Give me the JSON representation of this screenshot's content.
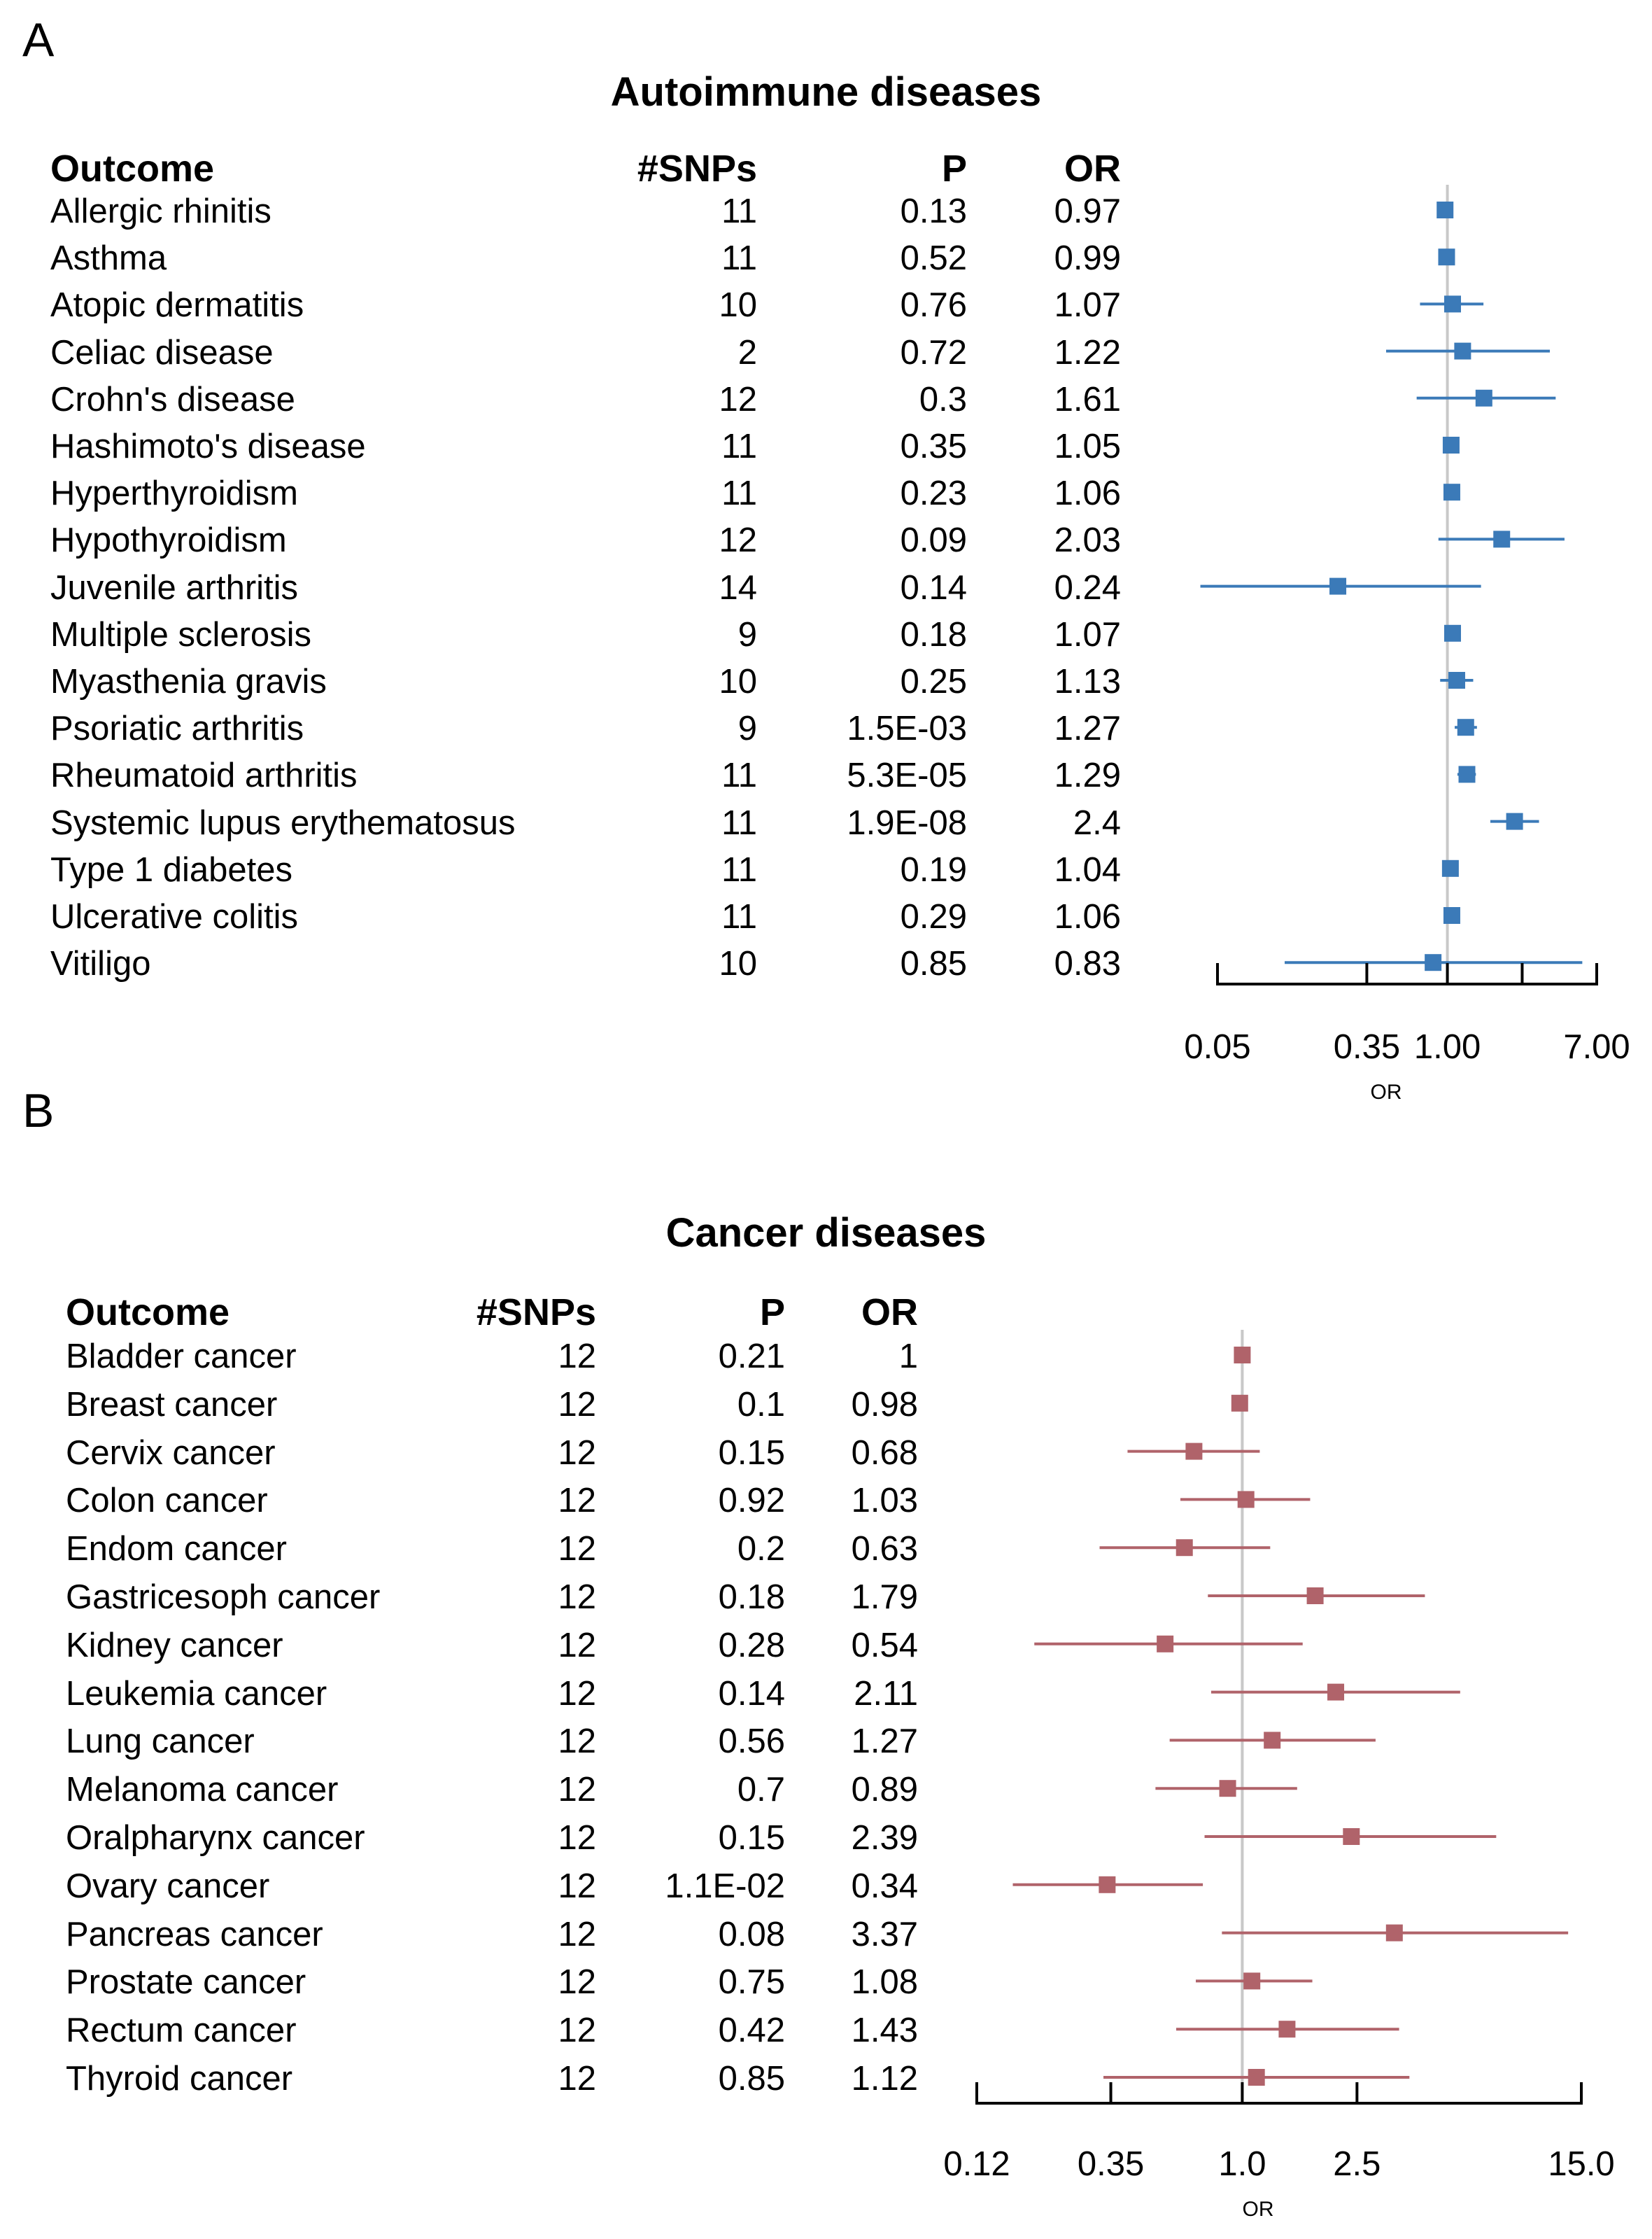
{
  "chart_data": [
    {
      "type": "forest",
      "panel": "A",
      "title": "Autoimmune diseases",
      "headers": {
        "outcome": "Outcome",
        "snps": "#SNPs",
        "p": "P",
        "or": "OR"
      },
      "xlabel": "OR",
      "xscale": "log",
      "xlim": [
        0.05,
        7.0
      ],
      "xticks": [
        0.05,
        0.35,
        1.0,
        2.65,
        7.0
      ],
      "xtick_labels": [
        "0.05",
        "0.35",
        "1.00",
        "",
        "7.00"
      ],
      "reference_line": 1.0,
      "color": "#3b7ab8",
      "rows": [
        {
          "outcome": "Allergic rhinitis",
          "snps": "11",
          "p": "0.13",
          "or": "0.97",
          "or_val": 0.97,
          "lo": 0.93,
          "hi": 1.01
        },
        {
          "outcome": "Asthma",
          "snps": "11",
          "p": "0.52",
          "or": "0.99",
          "or_val": 0.99,
          "lo": 0.96,
          "hi": 1.02
        },
        {
          "outcome": "Atopic dermatitis",
          "snps": "10",
          "p": "0.76",
          "or": "1.07",
          "or_val": 1.07,
          "lo": 0.7,
          "hi": 1.6
        },
        {
          "outcome": "Celiac disease",
          "snps": "2",
          "p": "0.72",
          "or": "1.22",
          "or_val": 1.22,
          "lo": 0.45,
          "hi": 3.8
        },
        {
          "outcome": "Crohn's disease",
          "snps": "12",
          "p": "0.3",
          "or": "1.61",
          "or_val": 1.61,
          "lo": 0.67,
          "hi": 4.1
        },
        {
          "outcome": "Hashimoto's disease",
          "snps": "11",
          "p": "0.35",
          "or": "1.05",
          "or_val": 1.05,
          "lo": 0.98,
          "hi": 1.12
        },
        {
          "outcome": "Hyperthyroidism",
          "snps": "11",
          "p": "0.23",
          "or": "1.06",
          "or_val": 1.06,
          "lo": 0.99,
          "hi": 1.13
        },
        {
          "outcome": "Hypothyroidism",
          "snps": "12",
          "p": "0.09",
          "or": "2.03",
          "or_val": 2.03,
          "lo": 0.89,
          "hi": 4.6
        },
        {
          "outcome": "Juvenile arthritis",
          "snps": "14",
          "p": "0.14",
          "or": "0.24",
          "or_val": 0.24,
          "lo": 0.04,
          "hi": 1.55
        },
        {
          "outcome": "Multiple sclerosis",
          "snps": "9",
          "p": "0.18",
          "or": "1.07",
          "or_val": 1.07,
          "lo": 0.99,
          "hi": 1.15
        },
        {
          "outcome": "Myasthenia gravis",
          "snps": "10",
          "p": "0.25",
          "or": "1.13",
          "or_val": 1.13,
          "lo": 0.91,
          "hi": 1.4
        },
        {
          "outcome": "Psoriatic arthritis",
          "snps": "9",
          "p": "1.5E-03",
          "or": "1.27",
          "or_val": 1.27,
          "lo": 1.1,
          "hi": 1.47
        },
        {
          "outcome": "Rheumatoid arthritis",
          "snps": "11",
          "p": "5.3E-05",
          "or": "1.29",
          "or_val": 1.29,
          "lo": 1.14,
          "hi": 1.45
        },
        {
          "outcome": "Systemic lupus erythematosus",
          "snps": "11",
          "p": "1.9E-08",
          "or": "2.4",
          "or_val": 2.4,
          "lo": 1.75,
          "hi": 3.3
        },
        {
          "outcome": "Type 1 diabetes",
          "snps": "11",
          "p": "0.19",
          "or": "1.04",
          "or_val": 1.04,
          "lo": 0.98,
          "hi": 1.1
        },
        {
          "outcome": "Ulcerative colitis",
          "snps": "11",
          "p": "0.29",
          "or": "1.06",
          "or_val": 1.06,
          "lo": 0.99,
          "hi": 1.13
        },
        {
          "outcome": "Vitiligo",
          "snps": "10",
          "p": "0.85",
          "or": "0.83",
          "or_val": 0.83,
          "lo": 0.12,
          "hi": 5.8
        }
      ]
    },
    {
      "type": "forest",
      "panel": "B",
      "title": "Cancer diseases",
      "headers": {
        "outcome": "Outcome",
        "snps": "#SNPs",
        "p": "P",
        "or": "OR"
      },
      "xlabel": "OR",
      "xscale": "log",
      "xlim": [
        0.12,
        15.0
      ],
      "xticks": [
        0.12,
        0.35,
        1.0,
        2.5,
        15.0
      ],
      "xtick_labels": [
        "0.12",
        "0.35",
        "1.0",
        "2.5",
        "15.0"
      ],
      "reference_line": 1.0,
      "color": "#b0636a",
      "rows": [
        {
          "outcome": "Bladder cancer",
          "snps": "12",
          "p": "0.21",
          "or": "1",
          "or_val": 1.0,
          "lo": 0.97,
          "hi": 1.03
        },
        {
          "outcome": "Breast cancer",
          "snps": "12",
          "p": "0.1",
          "or": "0.98",
          "or_val": 0.98,
          "lo": 0.95,
          "hi": 1.01
        },
        {
          "outcome": "Cervix cancer",
          "snps": "12",
          "p": "0.15",
          "or": "0.68",
          "or_val": 0.68,
          "lo": 0.4,
          "hi": 1.15
        },
        {
          "outcome": "Colon cancer",
          "snps": "12",
          "p": "0.92",
          "or": "1.03",
          "or_val": 1.03,
          "lo": 0.61,
          "hi": 1.72
        },
        {
          "outcome": "Endom cancer",
          "snps": "12",
          "p": "0.2",
          "or": "0.63",
          "or_val": 0.63,
          "lo": 0.32,
          "hi": 1.25
        },
        {
          "outcome": "Gastricesoph cancer",
          "snps": "12",
          "p": "0.18",
          "or": "1.79",
          "or_val": 1.79,
          "lo": 0.76,
          "hi": 4.3
        },
        {
          "outcome": "Kidney cancer",
          "snps": "12",
          "p": "0.28",
          "or": "0.54",
          "or_val": 0.54,
          "lo": 0.19,
          "hi": 1.62
        },
        {
          "outcome": "Leukemia cancer",
          "snps": "12",
          "p": "0.14",
          "or": "2.11",
          "or_val": 2.11,
          "lo": 0.78,
          "hi": 5.7
        },
        {
          "outcome": "Lung cancer",
          "snps": "12",
          "p": "0.56",
          "or": "1.27",
          "or_val": 1.27,
          "lo": 0.56,
          "hi": 2.9
        },
        {
          "outcome": "Melanoma cancer",
          "snps": "12",
          "p": "0.7",
          "or": "0.89",
          "or_val": 0.89,
          "lo": 0.5,
          "hi": 1.55
        },
        {
          "outcome": "Oralpharynx cancer",
          "snps": "12",
          "p": "0.15",
          "or": "2.39",
          "or_val": 2.39,
          "lo": 0.74,
          "hi": 7.6
        },
        {
          "outcome": "Ovary cancer",
          "snps": "12",
          "p": "1.1E-02",
          "or": "0.34",
          "or_val": 0.34,
          "lo": 0.16,
          "hi": 0.73
        },
        {
          "outcome": "Pancreas cancer",
          "snps": "12",
          "p": "0.08",
          "or": "3.37",
          "or_val": 3.37,
          "lo": 0.85,
          "hi": 13.5
        },
        {
          "outcome": "Prostate cancer",
          "snps": "12",
          "p": "0.75",
          "or": "1.08",
          "or_val": 1.08,
          "lo": 0.69,
          "hi": 1.75
        },
        {
          "outcome": "Rectum cancer",
          "snps": "12",
          "p": "0.42",
          "or": "1.43",
          "or_val": 1.43,
          "lo": 0.59,
          "hi": 3.5
        },
        {
          "outcome": "Thyroid cancer",
          "snps": "12",
          "p": "0.85",
          "or": "1.12",
          "or_val": 1.12,
          "lo": 0.33,
          "hi": 3.8
        }
      ]
    }
  ]
}
